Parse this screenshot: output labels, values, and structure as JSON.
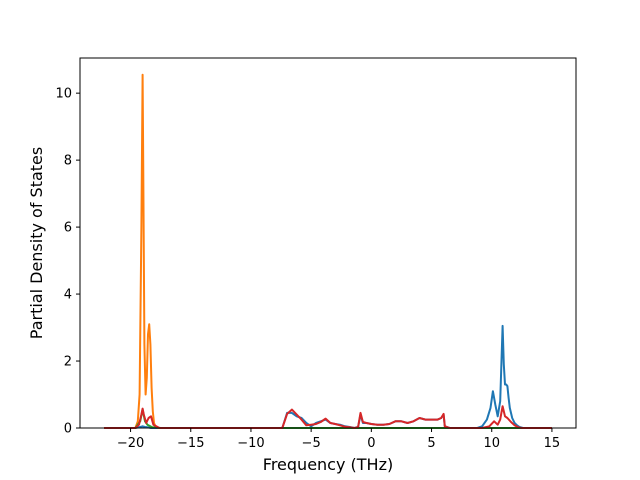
{
  "chart_data": {
    "type": "line",
    "xlabel": "Frequency (THz)",
    "ylabel": "Partial Density of States",
    "xlim": [
      -24.2,
      17.0
    ],
    "ylim": [
      0,
      11.05
    ],
    "xticks": [
      -20,
      -15,
      -10,
      -5,
      0,
      5,
      10,
      15
    ],
    "xtick_labels": [
      "−20",
      "−15",
      "−10",
      "−5",
      "0",
      "5",
      "10",
      "15"
    ],
    "yticks": [
      0,
      2,
      4,
      6,
      8,
      10
    ],
    "ytick_labels": [
      "0",
      "2",
      "4",
      "6",
      "8",
      "10"
    ],
    "grid": false,
    "legend": "none",
    "series": [
      {
        "color": "#1f77b4",
        "x": [
          -22.2,
          -19.6,
          -19.2,
          -19.0,
          -18.8,
          -18.6,
          -18.3,
          -17.5,
          -7.4,
          -7.0,
          -6.6,
          -6.2,
          -5.8,
          -5.4,
          -5.0,
          -4.6,
          -4.2,
          -3.8,
          -3.4,
          -3.0,
          -2.6,
          -2.2,
          -1.8,
          -1.4,
          -1.1,
          -0.9,
          -0.7,
          -0.4,
          0.0,
          0.5,
          1.0,
          1.5,
          2.0,
          2.5,
          3.0,
          3.5,
          4.0,
          4.5,
          5.0,
          5.5,
          5.8,
          6.0,
          6.1,
          6.5,
          8.8,
          9.2,
          9.6,
          9.9,
          10.1,
          10.3,
          10.5,
          10.7,
          10.9,
          11.0,
          11.1,
          11.2,
          11.3,
          11.4,
          11.5,
          11.7,
          11.9,
          12.1,
          12.3,
          12.6,
          15.0
        ],
        "y": [
          0,
          0,
          0.03,
          0.05,
          0.03,
          0.02,
          0,
          0,
          0,
          0.45,
          0.45,
          0.35,
          0.3,
          0.15,
          0.05,
          0.15,
          0.2,
          0.25,
          0.15,
          0.12,
          0.1,
          0.05,
          0.03,
          0.0,
          0.03,
          0.4,
          0.15,
          0.15,
          0.12,
          0.1,
          0.1,
          0.12,
          0.2,
          0.2,
          0.15,
          0.2,
          0.3,
          0.25,
          0.25,
          0.25,
          0.3,
          0.4,
          0.05,
          0,
          0,
          0.05,
          0.25,
          0.6,
          1.1,
          0.7,
          0.35,
          0.8,
          3.05,
          1.9,
          1.3,
          1.3,
          1.25,
          0.9,
          0.6,
          0.3,
          0.15,
          0.08,
          0.03,
          0,
          0
        ]
      },
      {
        "color": "#ff7f0e",
        "x": [
          -22.2,
          -19.6,
          -19.4,
          -19.25,
          -19.1,
          -19.0,
          -18.95,
          -18.85,
          -18.75,
          -18.65,
          -18.55,
          -18.45,
          -18.35,
          -18.25,
          -18.15,
          -18.05,
          -17.9,
          -17.7,
          15.0
        ],
        "y": [
          0,
          0,
          0.2,
          1.0,
          6.0,
          10.55,
          8.0,
          2.5,
          1.0,
          1.5,
          2.8,
          3.1,
          2.5,
          1.2,
          0.5,
          0.15,
          0.03,
          0,
          0
        ]
      },
      {
        "color": "#2ca02c",
        "x": [
          -22.2,
          -19.6,
          -19.2,
          -19.0,
          -18.8,
          -18.6,
          -18.2,
          -17.5,
          15.0
        ],
        "y": [
          0,
          0,
          0.2,
          0.55,
          0.2,
          0.1,
          0.02,
          0,
          0
        ]
      },
      {
        "color": "#d62728",
        "x": [
          -22.2,
          -19.6,
          -19.3,
          -19.1,
          -19.0,
          -18.9,
          -18.7,
          -18.5,
          -18.3,
          -18.1,
          -17.6,
          -7.4,
          -7.0,
          -6.6,
          -6.2,
          -5.8,
          -5.4,
          -5.0,
          -4.6,
          -4.2,
          -3.8,
          -3.4,
          -3.0,
          -2.6,
          -2.2,
          -1.8,
          -1.4,
          -1.1,
          -0.9,
          -0.7,
          -0.4,
          0.0,
          0.5,
          1.0,
          1.5,
          2.0,
          2.5,
          3.0,
          3.5,
          4.0,
          4.5,
          5.0,
          5.5,
          5.8,
          6.0,
          6.1,
          6.5,
          9.2,
          9.8,
          10.2,
          10.5,
          10.7,
          10.9,
          11.1,
          11.3,
          11.6,
          11.9,
          12.2,
          12.5,
          15.0
        ],
        "y": [
          0,
          0,
          0.1,
          0.4,
          0.58,
          0.4,
          0.15,
          0.3,
          0.35,
          0.1,
          0,
          0,
          0.42,
          0.55,
          0.4,
          0.25,
          0.08,
          0.1,
          0.12,
          0.18,
          0.28,
          0.15,
          0.12,
          0.08,
          0.04,
          0.02,
          0.0,
          0.03,
          0.45,
          0.18,
          0.15,
          0.12,
          0.1,
          0.1,
          0.12,
          0.2,
          0.2,
          0.15,
          0.2,
          0.3,
          0.25,
          0.25,
          0.25,
          0.3,
          0.42,
          0.05,
          0,
          0,
          0.05,
          0.2,
          0.1,
          0.25,
          0.65,
          0.35,
          0.3,
          0.18,
          0.08,
          0.02,
          0,
          0
        ]
      }
    ]
  }
}
